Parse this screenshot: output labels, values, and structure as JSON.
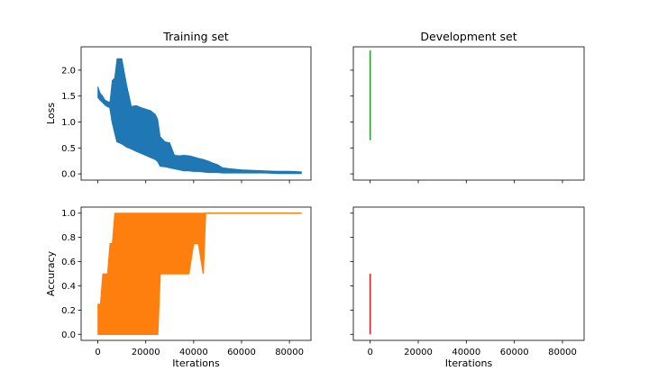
{
  "chart_data": [
    {
      "type": "line",
      "title": "Training set",
      "xlabel": "",
      "ylabel": "Loss",
      "xlim": [
        -7000,
        89000
      ],
      "ylim": [
        -0.12,
        2.45
      ],
      "xticks": [
        0,
        20000,
        40000,
        60000,
        80000
      ],
      "xticklabels": [
        "",
        "",
        "",
        "",
        ""
      ],
      "yticks": [
        0.0,
        0.5,
        1.0,
        1.5,
        2.0
      ],
      "yticklabels": [
        "0.0",
        "0.5",
        "1.0",
        "1.5",
        "2.0"
      ],
      "color": "#1f77b4",
      "series": [
        {
          "x": [
            0,
            1000,
            2000,
            3000,
            4000,
            5000,
            6000,
            7000,
            8000,
            9000,
            10000,
            12000,
            14000,
            16000,
            18000,
            20000,
            22000,
            24000,
            25000,
            26000,
            28000,
            30000,
            32000,
            34000,
            36000,
            38000,
            40000,
            42000,
            44000,
            46000,
            48000,
            50000,
            52000,
            55000,
            60000,
            65000,
            70000,
            75000,
            80000,
            85000
          ],
          "high": [
            1.68,
            1.55,
            1.5,
            1.42,
            1.4,
            1.38,
            1.8,
            1.85,
            2.22,
            2.22,
            2.22,
            1.72,
            1.3,
            1.32,
            1.28,
            1.25,
            1.22,
            1.15,
            1.05,
            0.72,
            0.62,
            0.6,
            0.36,
            0.35,
            0.36,
            0.35,
            0.33,
            0.3,
            0.28,
            0.25,
            0.21,
            0.18,
            0.12,
            0.1,
            0.08,
            0.07,
            0.06,
            0.05,
            0.05,
            0.04
          ],
          "low": [
            1.48,
            1.42,
            1.38,
            1.33,
            1.3,
            1.28,
            1.0,
            0.8,
            0.62,
            0.6,
            0.58,
            0.52,
            0.48,
            0.44,
            0.4,
            0.36,
            0.32,
            0.28,
            0.24,
            0.15,
            0.14,
            0.12,
            0.1,
            0.08,
            0.06,
            0.06,
            0.05,
            0.05,
            0.04,
            0.03,
            0.03,
            0.03,
            0.02,
            0.02,
            0.02,
            0.02,
            0.02,
            0.01,
            0.01,
            0.01
          ]
        }
      ]
    },
    {
      "type": "line",
      "title": "Development set",
      "xlabel": "",
      "ylabel": "",
      "xlim": [
        -7000,
        89000
      ],
      "ylim": [
        -0.12,
        2.45
      ],
      "xticks": [
        0,
        20000,
        40000,
        60000,
        80000
      ],
      "xticklabels": [
        "",
        "",
        "",
        "",
        ""
      ],
      "yticks": [
        0.0,
        0.5,
        1.0,
        1.5,
        2.0
      ],
      "yticklabels": [
        "",
        "",
        "",
        "",
        ""
      ],
      "color": "#2ca02c",
      "series": [
        {
          "x": [
            0,
            0
          ],
          "low": [
            0.65,
            0.65
          ],
          "high": [
            2.38,
            2.38
          ]
        }
      ]
    },
    {
      "type": "line",
      "title": "",
      "xlabel": "Iterations",
      "ylabel": "Accuracy",
      "xlim": [
        -7000,
        89000
      ],
      "ylim": [
        -0.05,
        1.05
      ],
      "xticks": [
        0,
        20000,
        40000,
        60000,
        80000
      ],
      "xticklabels": [
        "0",
        "20000",
        "40000",
        "60000",
        "80000"
      ],
      "yticks": [
        0.0,
        0.2,
        0.4,
        0.6,
        0.8,
        1.0
      ],
      "yticklabels": [
        "0.0",
        "0.2",
        "0.4",
        "0.6",
        "0.8",
        "1.0"
      ],
      "color": "#ff7f0e",
      "series": [
        {
          "x": [
            0,
            1000,
            2000,
            3000,
            4000,
            5000,
            6000,
            7000,
            8000,
            10000,
            12000,
            14000,
            16000,
            18000,
            20000,
            22000,
            24000,
            25000,
            26000,
            28000,
            30000,
            32000,
            34000,
            36000,
            38000,
            40000,
            42000,
            44000,
            45000,
            50000,
            55000,
            60000,
            65000,
            70000,
            75000,
            80000,
            85000
          ],
          "high": [
            0.25,
            0.25,
            0.5,
            0.5,
            0.5,
            0.75,
            0.75,
            1.0,
            1.0,
            1.0,
            1.0,
            1.0,
            1.0,
            1.0,
            1.0,
            1.0,
            1.0,
            1.0,
            1.0,
            1.0,
            1.0,
            1.0,
            1.0,
            1.0,
            1.0,
            1.0,
            1.0,
            1.0,
            1.0,
            1.0,
            1.0,
            1.0,
            1.0,
            1.0,
            1.0,
            1.0,
            1.0
          ],
          "low": [
            0.0,
            0.0,
            0.0,
            0.0,
            0.0,
            0.0,
            0.0,
            0.0,
            0.0,
            0.0,
            0.0,
            0.0,
            0.0,
            0.0,
            0.0,
            0.0,
            0.0,
            0.0,
            0.5,
            0.5,
            0.5,
            0.5,
            0.5,
            0.5,
            0.5,
            0.75,
            0.75,
            0.5,
            1.0,
            1.0,
            1.0,
            1.0,
            1.0,
            1.0,
            1.0,
            1.0,
            1.0
          ]
        }
      ]
    },
    {
      "type": "line",
      "title": "",
      "xlabel": "Iterations",
      "ylabel": "",
      "xlim": [
        -7000,
        89000
      ],
      "ylim": [
        -0.05,
        1.05
      ],
      "xticks": [
        0,
        20000,
        40000,
        60000,
        80000
      ],
      "xticklabels": [
        "0",
        "20000",
        "40000",
        "60000",
        "80000"
      ],
      "yticks": [
        0.0,
        0.2,
        0.4,
        0.6,
        0.8,
        1.0
      ],
      "yticklabels": [
        "",
        "",
        "",
        "",
        "",
        ""
      ],
      "color": "#d62728",
      "series": [
        {
          "x": [
            0,
            0
          ],
          "low": [
            0.0,
            0.0
          ],
          "high": [
            0.5,
            0.5
          ]
        }
      ]
    }
  ]
}
